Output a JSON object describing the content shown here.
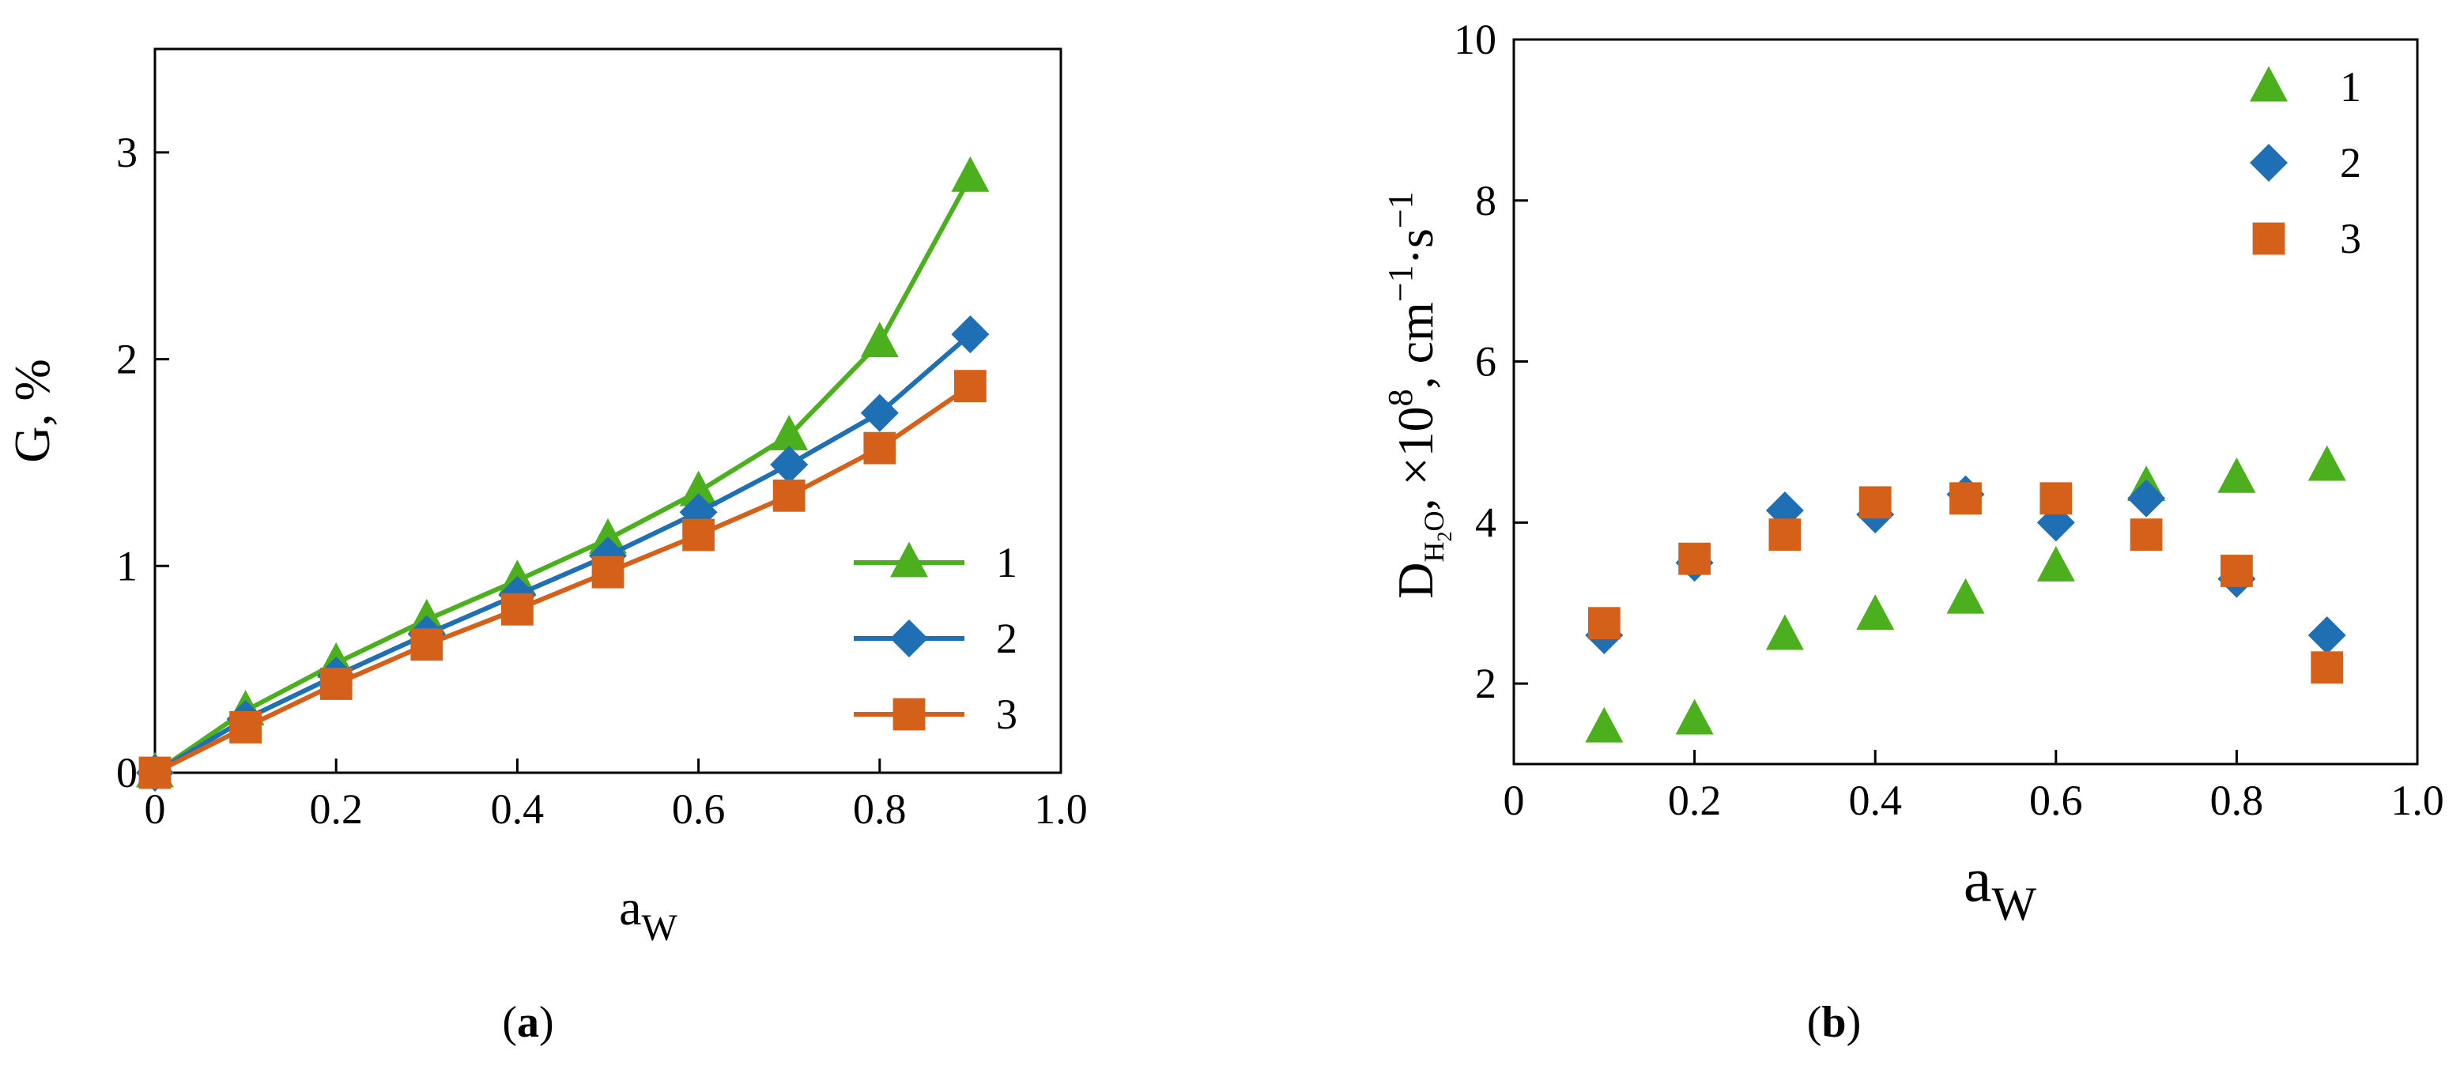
{
  "colors": {
    "s1": "#4caf1e",
    "s2": "#1f6fb4",
    "s3": "#d4601a"
  },
  "chart_data": [
    {
      "id": "a",
      "type": "line",
      "panel_label_open": "(",
      "panel_label_letter": "a",
      "panel_label_close": ")",
      "xlabel_main": "a",
      "xlabel_sub": "W",
      "ylabel": "G, %",
      "xlim": [
        0,
        1.0
      ],
      "ylim": [
        0,
        3.5
      ],
      "xticks": [
        0,
        0.2,
        0.4,
        0.6,
        0.8,
        1.0
      ],
      "xtick_labels": [
        "0",
        "0.2",
        "0.4",
        "0.6",
        "0.8",
        "1.0"
      ],
      "yticks": [
        0,
        1,
        2,
        3
      ],
      "ytick_labels": [
        "0",
        "1",
        "2",
        "3"
      ],
      "legend_position": "bottom-right",
      "x": [
        0,
        0.1,
        0.2,
        0.3,
        0.4,
        0.5,
        0.6,
        0.7,
        0.8,
        0.9
      ],
      "series": [
        {
          "name": "1",
          "marker": "triangle",
          "color_key": "s1",
          "values": [
            0.0,
            0.3,
            0.53,
            0.74,
            0.93,
            1.13,
            1.36,
            1.63,
            2.08,
            2.88
          ]
        },
        {
          "name": "2",
          "marker": "diamond",
          "color_key": "s2",
          "values": [
            0.0,
            0.26,
            0.47,
            0.67,
            0.86,
            1.05,
            1.26,
            1.49,
            1.74,
            2.12
          ]
        },
        {
          "name": "3",
          "marker": "square",
          "color_key": "s3",
          "values": [
            0.0,
            0.22,
            0.43,
            0.62,
            0.79,
            0.97,
            1.15,
            1.34,
            1.57,
            1.87
          ]
        }
      ]
    },
    {
      "id": "b",
      "type": "scatter",
      "panel_label_open": "(",
      "panel_label_letter": "b",
      "panel_label_close": ")",
      "xlabel_main": "a",
      "xlabel_sub": "W",
      "ylabel_main": "D",
      "ylabel_sub": "H",
      "ylabel_sub2": "2",
      "ylabel_sub3": "O",
      "ylabel_rest": ", ×10",
      "ylabel_sup1": "8",
      "ylabel_rest2": ", cm",
      "ylabel_sup2": "−1",
      "ylabel_rest3": "·s",
      "ylabel_sup3": "−1",
      "xlim": [
        0,
        1.0
      ],
      "ylim": [
        1,
        10
      ],
      "xticks": [
        0,
        0.2,
        0.4,
        0.6,
        0.8,
        1.0
      ],
      "xtick_labels": [
        "0",
        "0.2",
        "0.4",
        "0.6",
        "0.8",
        "1.0"
      ],
      "yticks": [
        2,
        4,
        6,
        8,
        10
      ],
      "ytick_labels": [
        "2",
        "4",
        "6",
        "8",
        "10"
      ],
      "legend_position": "top-right",
      "series": [
        {
          "name": "1",
          "marker": "triangle",
          "color_key": "s1",
          "x": [
            0.1,
            0.2,
            0.3,
            0.4,
            0.5,
            0.6,
            0.7,
            0.8,
            0.9
          ],
          "values": [
            1.45,
            1.55,
            2.6,
            2.85,
            3.05,
            3.45,
            4.45,
            4.55,
            4.7
          ]
        },
        {
          "name": "2",
          "marker": "diamond",
          "color_key": "s2",
          "x": [
            0.1,
            0.2,
            0.3,
            0.4,
            0.5,
            0.6,
            0.7,
            0.8,
            0.9
          ],
          "values": [
            2.6,
            3.5,
            4.15,
            4.1,
            4.35,
            4.0,
            4.3,
            3.3,
            2.6
          ]
        },
        {
          "name": "3",
          "marker": "square",
          "color_key": "s3",
          "x": [
            0.1,
            0.2,
            0.3,
            0.4,
            0.5,
            0.6,
            0.7,
            0.8,
            0.9
          ],
          "values": [
            2.75,
            3.55,
            3.85,
            4.25,
            4.3,
            4.3,
            3.85,
            3.4,
            2.2
          ]
        }
      ]
    }
  ]
}
